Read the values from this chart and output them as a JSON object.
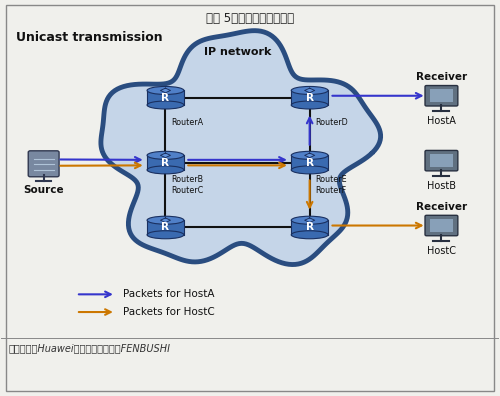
{
  "title": "图表 5：单播通信网络结构",
  "subtitle": "Unicast transmission",
  "ip_network_label": "IP network",
  "source_label": "Source",
  "host_labels": [
    "HostA",
    "HostB",
    "HostC"
  ],
  "router_labels_left": [
    "RouterA",
    "RouterB",
    "RouterC"
  ],
  "router_labels_right": [
    "RouterD",
    "RouterE",
    "RouterF"
  ],
  "legend_items": [
    "Packets for HostA",
    "Packets for HostC"
  ],
  "legend_colors": [
    "#3535cc",
    "#cc7700"
  ],
  "footer": "资料来源：Huawei，通证通研究院，FENBUSHI",
  "bg_color": "#f0f0ec",
  "cloud_fill": "#c5d5e8",
  "cloud_edge": "#2a4d80",
  "cloud_edge_lw": 3.5,
  "router_body_color": "#3a6ab0",
  "router_top_color": "#5080c8",
  "router_text_color": "#ffffff",
  "line_color": "#111111",
  "blue_arrow": "#3535cc",
  "orange_arrow": "#cc7700"
}
